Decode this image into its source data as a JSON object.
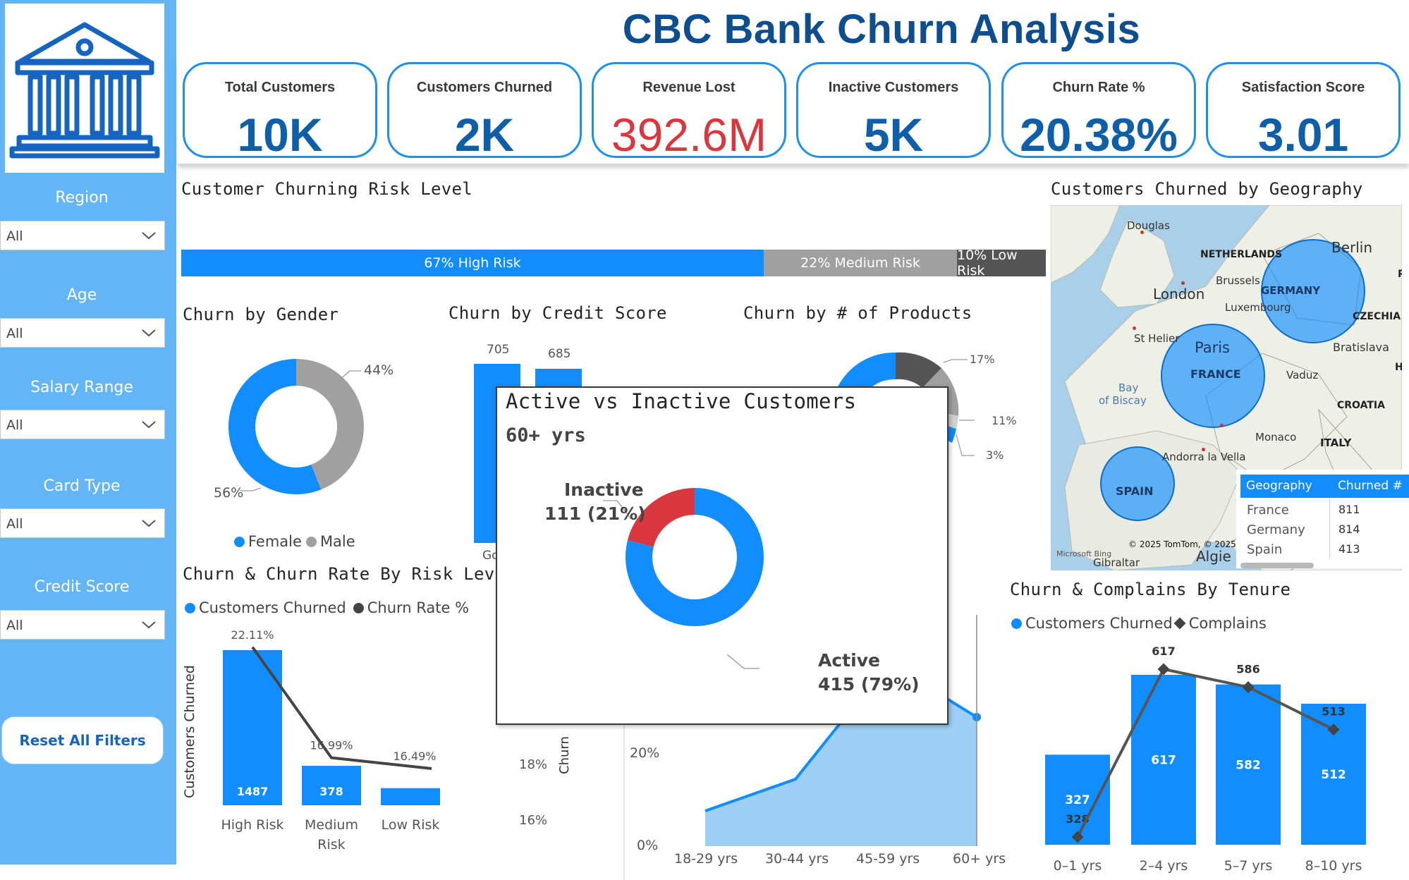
{
  "title": "CBC Bank Churn Analysis",
  "kpis": [
    {
      "label": "Total Customers",
      "value": "10K"
    },
    {
      "label": "Customers Churned",
      "value": "2K"
    },
    {
      "label": "Revenue Lost",
      "value": "392.6M"
    },
    {
      "label": "Inactive Customers",
      "value": "5K"
    },
    {
      "label": "Churn Rate %",
      "value": "20.38%"
    },
    {
      "label": "Satisfaction Score",
      "value": "3.01"
    }
  ],
  "filters": [
    {
      "label": "Region",
      "value": "All"
    },
    {
      "label": "Age",
      "value": "All"
    },
    {
      "label": "Salary Range",
      "value": "All"
    },
    {
      "label": "Card Type",
      "value": "All"
    },
    {
      "label": "Credit Score",
      "value": "All"
    }
  ],
  "reset_label": "Reset All Filters",
  "colors": {
    "accent": "#118dff",
    "sidebar": "#64b5f6",
    "title": "#0e4e8f",
    "red": "#d9363e",
    "grey": "#a0a0a0",
    "dark": "#555555"
  },
  "sections": {
    "risk_level": "Customer Churning Risk Level",
    "gender": "Churn by Gender",
    "credit": "Churn by Credit Score",
    "products": "Churn by # of Products",
    "risk_rate": "Churn & Churn Rate By Risk Level",
    "geography": "Customers Churned by Geography",
    "tenure": "Churn & Complains By Tenure"
  },
  "risk_bar": [
    {
      "label": "67% High Risk",
      "share": 67
    },
    {
      "label": "22% Medium Risk",
      "share": 22
    },
    {
      "label": "10% Low Risk",
      "share": 10
    }
  ],
  "gender_chart": {
    "legend": [
      "Female",
      "Male"
    ],
    "labels": {
      "female": "56%",
      "male": "44%"
    }
  },
  "credit_chart": {
    "labels": [
      "705",
      "685"
    ],
    "partial_tick": "Go"
  },
  "products_chart": {
    "labels": [
      "17%",
      "11%",
      "3%"
    ]
  },
  "popup": {
    "title": "Active vs Inactive Customers",
    "subtitle": "60+ yrs",
    "inactive_label": "Inactive",
    "inactive_value": "111 (21%)",
    "active_label": "Active",
    "active_value": "415 (79%)"
  },
  "age_chart": {
    "y_labels": {
      "y18": "18%",
      "y16": "16%",
      "y20": "20%",
      "y0": "0%"
    },
    "axis_partial": "Churn",
    "categories": [
      "18-29 yrs",
      "30-44 yrs",
      "45-59 yrs",
      "60+ yrs"
    ]
  },
  "geo": {
    "places": {
      "douglas": "Douglas",
      "netherlands": "NETHERLANDS",
      "berlin": "Berlin",
      "london": "London",
      "brussels": "Brussels",
      "germany": "GERMANY",
      "luxembourg": "Luxembourg",
      "czechia": "CZECHIA",
      "sthelier": "St Helier",
      "paris": "Paris",
      "bratislava": "Bratislava",
      "france": "FRANCE",
      "vaduz": "Vaduz",
      "bay1": "Bay",
      "bay2": "of Biscay",
      "croatia": "CROATIA",
      "monaco": "Monaco",
      "italy": "ITALY",
      "andorra": "Andorra la Vella",
      "spain": "SPAIN",
      "gibraltar": "Gibraltar",
      "algiers": "Algie",
      "bing": "Microsoft Bing",
      "tomtom": "© 2025 TomTom, © 2025",
      "edge_p": "P",
      "edge_h": "H"
    },
    "table": {
      "headers": [
        "Geography",
        "Churned #"
      ],
      "rows": [
        {
          "geo": "France",
          "churned": "811"
        },
        {
          "geo": "Germany",
          "churned": "814"
        },
        {
          "geo": "Spain",
          "churned": "413"
        }
      ]
    }
  },
  "chart_data": [
    {
      "type": "bar",
      "title": "Churn & Churn Rate By Risk Level",
      "categories": [
        "High Risk",
        "Medium Risk",
        "Low Risk"
      ],
      "series": [
        {
          "name": "Customers Churned",
          "values": [
            1487,
            378,
            164
          ]
        },
        {
          "name": "Churn Rate %",
          "values": [
            22.11,
            16.99,
            16.49
          ]
        }
      ],
      "bar_labels": [
        "1487",
        "378",
        ""
      ],
      "rate_labels": [
        "22.11%",
        "16.99%",
        "16.49%"
      ],
      "ylabel": "Customers Churned",
      "legend": "top-left"
    },
    {
      "type": "bar",
      "title": "Churn & Complains By Tenure",
      "categories": [
        "0–1 yrs",
        "2–4 yrs",
        "5–7 yrs",
        "8–10 yrs"
      ],
      "series": [
        {
          "name": "Customers Churned",
          "values": [
            327,
            617,
            582,
            512
          ]
        },
        {
          "name": "Complains",
          "values": [
            328,
            617,
            586,
            513
          ]
        }
      ],
      "legend": "top-left"
    },
    {
      "type": "pie",
      "title": "Active vs Inactive Customers",
      "categories": [
        "Active",
        "Inactive"
      ],
      "values": [
        415,
        111
      ]
    },
    {
      "type": "pie",
      "title": "Churn by Gender",
      "categories": [
        "Female",
        "Male"
      ],
      "values": [
        56,
        44
      ]
    }
  ]
}
